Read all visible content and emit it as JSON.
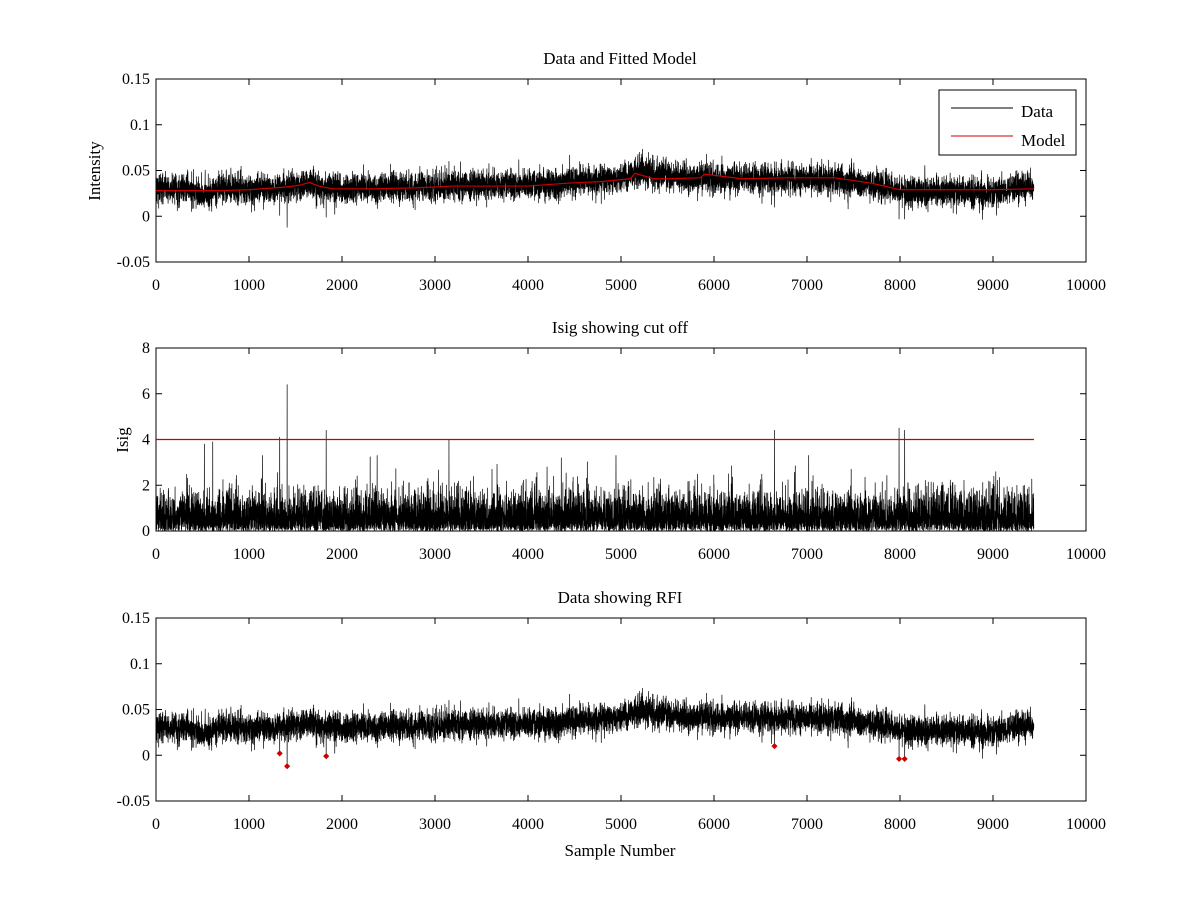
{
  "chart_data": [
    {
      "type": "line",
      "title": "Data and Fitted Model",
      "xlabel": "",
      "ylabel": "Intensity",
      "xlim": [
        0,
        10000
      ],
      "ylim": [
        -0.05,
        0.15
      ],
      "xticks": [
        0,
        1000,
        2000,
        3000,
        4000,
        5000,
        6000,
        7000,
        8000,
        9000,
        10000
      ],
      "xticklabels": [
        "0",
        "1000",
        "2000",
        "3000",
        "4000",
        "5000",
        "6000",
        "7000",
        "8000",
        "9000",
        "10000"
      ],
      "yticks": [
        -0.05,
        0,
        0.05,
        0.1,
        0.15
      ],
      "yticklabels": [
        "-0.05",
        "0",
        "0.05",
        "0.1",
        "0.15"
      ],
      "legend": {
        "position": "top-right",
        "entries": [
          {
            "label": "Data",
            "color": "#000000"
          },
          {
            "label": "Model",
            "color": "#cc0000"
          }
        ]
      },
      "series": [
        {
          "name": "Data",
          "color": "#000000",
          "kind": "noisy",
          "n": 9440,
          "noise_amplitude": 0.008,
          "baseline": {
            "x": [
              0,
              300,
              500,
              700,
              1000,
              1400,
              1650,
              1900,
              2300,
              2800,
              3200,
              3600,
              4000,
              4500,
              5000,
              5200,
              5500,
              5900,
              6300,
              6800,
              7300,
              7700,
              8000,
              8500,
              9000,
              9440
            ],
            "y": [
              0.03,
              0.03,
              0.024,
              0.03,
              0.03,
              0.031,
              0.036,
              0.03,
              0.031,
              0.031,
              0.033,
              0.034,
              0.034,
              0.038,
              0.041,
              0.049,
              0.043,
              0.042,
              0.041,
              0.041,
              0.04,
              0.035,
              0.028,
              0.027,
              0.026,
              0.033
            ]
          },
          "spikes": {
            "x": [
              1410,
              1330,
              1830,
              3150,
              5180,
              5200,
              6650,
              7990,
              8050
            ],
            "y": [
              -0.012,
              0.001,
              -0.001,
              0.06,
              0.066,
              0.07,
              0.01,
              -0.003,
              -0.003
            ]
          }
        },
        {
          "name": "Model",
          "color": "#cc0000",
          "kind": "line",
          "x": [
            0,
            400,
            700,
            1000,
            1400,
            1550,
            1650,
            1750,
            1900,
            2300,
            2800,
            3200,
            3600,
            4000,
            4400,
            4800,
            5100,
            5150,
            5250,
            5350,
            5500,
            5850,
            5900,
            6300,
            6800,
            7300,
            7700,
            8000,
            8500,
            9000,
            9440
          ],
          "y": [
            0.028,
            0.028,
            0.028,
            0.029,
            0.032,
            0.034,
            0.037,
            0.033,
            0.03,
            0.03,
            0.031,
            0.033,
            0.033,
            0.033,
            0.036,
            0.038,
            0.041,
            0.047,
            0.044,
            0.041,
            0.041,
            0.042,
            0.046,
            0.041,
            0.042,
            0.042,
            0.036,
            0.029,
            0.029,
            0.029,
            0.03
          ]
        }
      ]
    },
    {
      "type": "line",
      "title": "Isig showing cut off",
      "xlabel": "",
      "ylabel": "Isig",
      "xlim": [
        0,
        10000
      ],
      "ylim": [
        0,
        8
      ],
      "xticks": [
        0,
        1000,
        2000,
        3000,
        4000,
        5000,
        6000,
        7000,
        8000,
        9000,
        10000
      ],
      "xticklabels": [
        "0",
        "1000",
        "2000",
        "3000",
        "4000",
        "5000",
        "6000",
        "7000",
        "8000",
        "9000",
        "10000"
      ],
      "yticks": [
        0,
        2,
        4,
        6,
        8
      ],
      "yticklabels": [
        "0",
        "2",
        "4",
        "6",
        "8"
      ],
      "series": [
        {
          "name": "Isig",
          "color": "#000000",
          "kind": "abs-noise",
          "n": 9440,
          "scale": 0.8,
          "spikes": {
            "x": [
              1410,
              1330,
              1830,
              3150,
              6650,
              7990,
              8050,
              520,
              610
            ],
            "y": [
              6.4,
              4.1,
              4.4,
              4.0,
              4.4,
              4.5,
              4.4,
              3.8,
              3.9
            ]
          }
        },
        {
          "name": "Cut off",
          "color": "#cc0000",
          "kind": "line",
          "x": [
            0,
            9440
          ],
          "y": [
            4,
            4
          ]
        }
      ]
    },
    {
      "type": "line",
      "title": "Data showing RFI",
      "xlabel": "Sample Number",
      "ylabel": "",
      "xlim": [
        0,
        10000
      ],
      "ylim": [
        -0.05,
        0.15
      ],
      "xticks": [
        0,
        1000,
        2000,
        3000,
        4000,
        5000,
        6000,
        7000,
        8000,
        9000,
        10000
      ],
      "xticklabels": [
        "0",
        "1000",
        "2000",
        "3000",
        "4000",
        "5000",
        "6000",
        "7000",
        "8000",
        "9000",
        "10000"
      ],
      "yticks": [
        -0.05,
        0,
        0.05,
        0.1,
        0.15
      ],
      "yticklabels": [
        "-0.05",
        "0",
        "0.05",
        "0.1",
        "0.15"
      ],
      "series": [
        {
          "name": "Data",
          "color": "#000000",
          "kind": "noisy-ref",
          "ref": 0
        },
        {
          "name": "RFI",
          "color": "#cc0000",
          "kind": "scatter",
          "x": [
            1330,
            1410,
            1830,
            6650,
            7990,
            8050
          ],
          "y": [
            0.002,
            -0.012,
            -0.001,
            0.01,
            -0.004,
            -0.004
          ]
        }
      ]
    }
  ]
}
